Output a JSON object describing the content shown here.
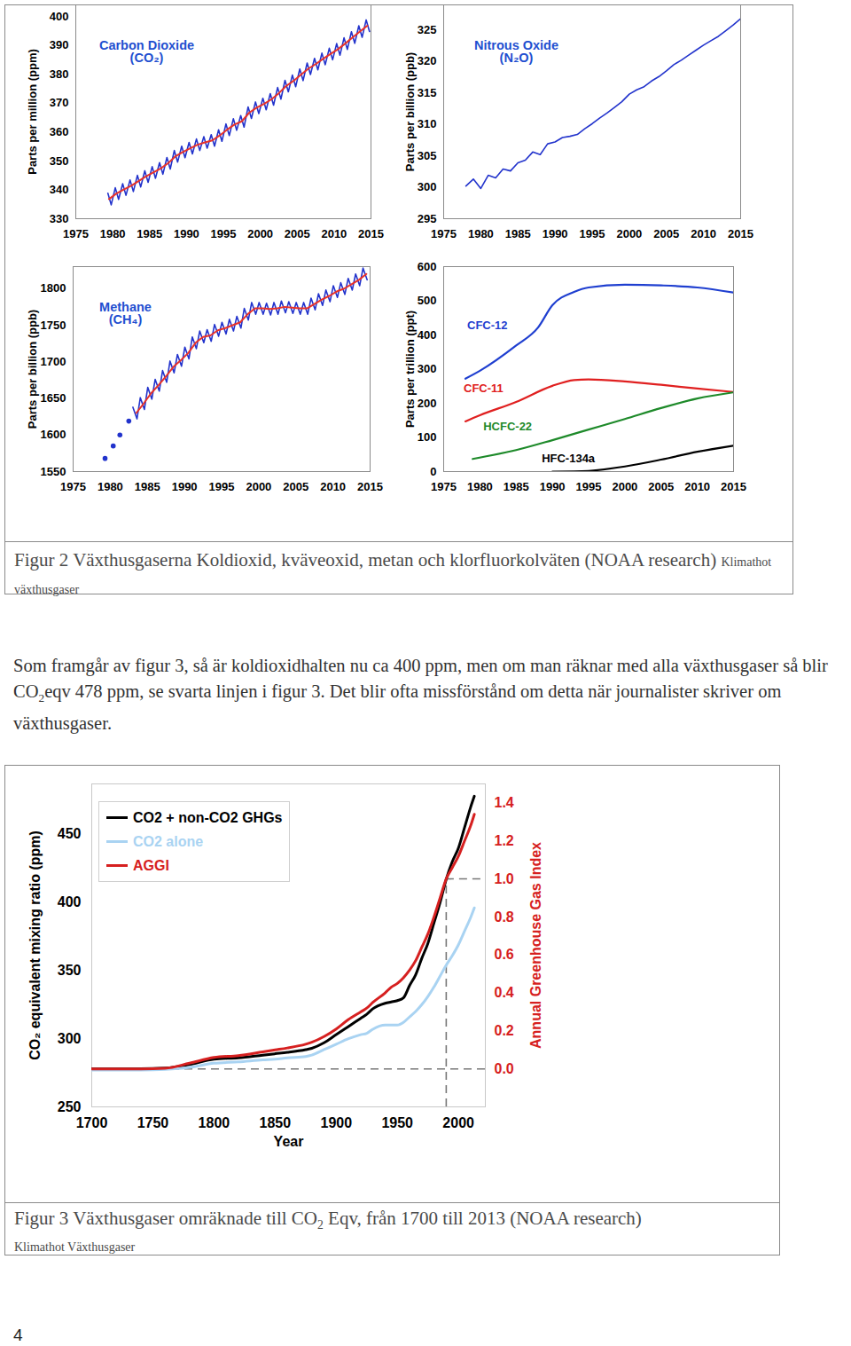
{
  "chart_data": [
    {
      "type": "line",
      "title": "Carbon Dioxide\n(CO₂)",
      "y_label": "Parts per million (ppm)",
      "xlim": [
        1975,
        2015
      ],
      "xticks": [
        1975,
        1980,
        1985,
        1990,
        1995,
        2000,
        2005,
        2010,
        2015
      ],
      "ylim": [
        330,
        404
      ],
      "yticks": [
        330,
        340,
        350,
        360,
        370,
        380,
        390,
        400
      ],
      "series": [
        {
          "color": "#2233cc",
          "x": [
            1979.35,
            1979.8,
            1980.35,
            1980.8,
            1981.35,
            1981.8,
            1982.35,
            1982.8,
            1983.35,
            1983.8,
            1984.35,
            1984.8,
            1985.35,
            1985.8,
            1986.35,
            1986.8,
            1987.35,
            1987.8,
            1988.35,
            1988.8,
            1989.35,
            1989.8,
            1990.35,
            1990.8,
            1991.35,
            1991.8,
            1992.35,
            1992.8,
            1993.35,
            1993.8,
            1994.35,
            1994.8,
            1995.35,
            1995.8,
            1996.35,
            1996.8,
            1997.35,
            1997.8,
            1998.35,
            1998.8,
            1999.35,
            1999.8,
            2000.35,
            2000.8,
            2001.35,
            2001.8,
            2002.35,
            2002.8,
            2003.35,
            2003.8,
            2004.35,
            2004.8,
            2005.35,
            2005.8,
            2006.35,
            2006.8,
            2007.35,
            2007.8,
            2008.35,
            2008.8,
            2009.35,
            2009.8,
            2010.35,
            2010.8,
            2011.35,
            2011.8,
            2012.35,
            2012.8,
            2013.35,
            2013.8,
            2014.35,
            2014.8
          ],
          "values": [
            338.8,
            334.8,
            340.7,
            336.7,
            342.1,
            338.1,
            343.4,
            339.4,
            345.0,
            341.0,
            346.6,
            342.6,
            348.0,
            344.0,
            349.4,
            345.4,
            351.2,
            347.2,
            353.6,
            349.6,
            355.1,
            351.1,
            356.4,
            352.4,
            357.6,
            353.6,
            358.4,
            354.4,
            359.1,
            355.1,
            360.8,
            356.8,
            362.8,
            358.8,
            364.6,
            360.6,
            365.7,
            361.7,
            368.7,
            364.7,
            370.4,
            366.4,
            371.7,
            367.7,
            373.3,
            369.3,
            375.4,
            371.4,
            377.9,
            373.9,
            379.7,
            375.7,
            381.8,
            377.8,
            383.9,
            379.9,
            385.5,
            381.5,
            387.3,
            383.3,
            389.0,
            385.0,
            390.6,
            386.6,
            392.6,
            388.6,
            394.7,
            390.7,
            396.8,
            392.8,
            398.8,
            394.8
          ]
        },
        {
          "color": "#e8322a",
          "x": [
            1979.5,
            1980.5,
            1981.5,
            1982.5,
            1983.5,
            1984.5,
            1985.5,
            1986.5,
            1987.5,
            1988.5,
            1989.5,
            1990.5,
            1991.5,
            1992.5,
            1993.5,
            1994.5,
            1995.5,
            1996.5,
            1997.5,
            1998.5,
            1999.5,
            2000.5,
            2001.5,
            2002.5,
            2003.5,
            2004.5,
            2005.5,
            2006.5,
            2007.5,
            2008.5,
            2009.5,
            2010.5,
            2011.5,
            2012.5,
            2013.5,
            2014.5
          ],
          "values": [
            336.8,
            338.7,
            340.1,
            341.4,
            343.0,
            344.6,
            346.0,
            347.4,
            349.2,
            351.6,
            353.1,
            354.4,
            355.6,
            356.4,
            357.1,
            358.8,
            360.8,
            362.6,
            363.7,
            366.7,
            368.4,
            369.7,
            371.3,
            373.4,
            375.9,
            377.7,
            379.8,
            381.9,
            383.5,
            385.3,
            387.0,
            388.6,
            390.6,
            392.7,
            394.8,
            396.8
          ]
        }
      ]
    },
    {
      "type": "line",
      "title": "Nitrous Oxide\n(N₂O)",
      "y_label": "Parts per billion (ppb)",
      "xlim": [
        1975,
        2015
      ],
      "xticks": [
        1975,
        1980,
        1985,
        1990,
        1995,
        2000,
        2005,
        2010,
        2015
      ],
      "ylim": [
        295,
        329
      ],
      "yticks": [
        295,
        300,
        305,
        310,
        315,
        320,
        325
      ],
      "series": [
        {
          "color": "#2233cc",
          "x": [
            1978,
            1979,
            1980,
            1981,
            1982,
            1983,
            1984,
            1985,
            1986,
            1987,
            1988,
            1989,
            1990,
            1991,
            1992,
            1993,
            1994,
            1995,
            1996,
            1997,
            1998,
            1999,
            2000,
            2001,
            2002,
            2003,
            2004,
            2005,
            2006,
            2007,
            2008,
            2009,
            2010,
            2011,
            2012,
            2013,
            2014,
            2015
          ],
          "values": [
            300.2,
            301.3,
            299.8,
            301.9,
            301.5,
            302.9,
            302.6,
            303.9,
            304.3,
            305.6,
            305.2,
            306.9,
            307.2,
            307.9,
            308.1,
            308.4,
            309.3,
            310.1,
            311.0,
            311.8,
            312.7,
            313.6,
            314.8,
            315.5,
            316.0,
            316.9,
            317.6,
            318.5,
            319.5,
            320.2,
            321.0,
            321.8,
            322.6,
            323.3,
            324.0,
            324.9,
            325.8,
            326.8
          ]
        }
      ]
    },
    {
      "type": "line",
      "title": "Methane\n(CH₄)",
      "y_label": "Parts per billion (ppb)",
      "xlim": [
        1975,
        2015
      ],
      "xticks": [
        1975,
        1980,
        1985,
        1990,
        1995,
        2000,
        2005,
        2010,
        2015
      ],
      "ylim": [
        1550,
        1830
      ],
      "yticks": [
        1550,
        1600,
        1650,
        1700,
        1750,
        1800
      ],
      "series": [
        {
          "type": "scatter",
          "marker": "dot",
          "color": "#2233cc",
          "x": [
            1979.3,
            1980.4,
            1981.3,
            1982.5
          ],
          "values": [
            1568,
            1585,
            1600,
            1619
          ]
        },
        {
          "color": "#2233cc",
          "x": [
            1983.05,
            1983.6,
            1984.05,
            1984.6,
            1985.05,
            1985.6,
            1986.05,
            1986.6,
            1987.05,
            1987.6,
            1988.05,
            1988.6,
            1989.05,
            1989.6,
            1990.05,
            1990.6,
            1991.05,
            1991.6,
            1992.05,
            1992.6,
            1993.05,
            1993.6,
            1994.05,
            1994.6,
            1995.05,
            1995.6,
            1996.05,
            1996.6,
            1997.05,
            1997.6,
            1998.05,
            1998.6,
            1999.05,
            1999.6,
            2000.05,
            2000.6,
            2001.05,
            2001.6,
            2002.05,
            2002.6,
            2003.05,
            2003.6,
            2004.05,
            2004.6,
            2005.05,
            2005.6,
            2006.05,
            2006.6,
            2007.05,
            2007.6,
            2008.05,
            2008.6,
            2009.05,
            2009.6,
            2010.05,
            2010.6,
            2011.05,
            2011.6,
            2012.05,
            2012.6,
            2013.05,
            2013.6,
            2014.05,
            2014.6
          ],
          "values": [
            1638,
            1622,
            1651,
            1635,
            1665,
            1649,
            1676,
            1660,
            1688,
            1672,
            1701,
            1685,
            1710,
            1694,
            1720,
            1704,
            1734,
            1718,
            1742,
            1726,
            1744,
            1728,
            1751,
            1735,
            1754,
            1738,
            1758,
            1742,
            1762,
            1746,
            1773,
            1757,
            1781,
            1765,
            1781,
            1765,
            1780,
            1764,
            1781,
            1765,
            1783,
            1767,
            1782,
            1766,
            1781,
            1765,
            1781,
            1765,
            1787,
            1771,
            1793,
            1777,
            1798,
            1782,
            1804,
            1788,
            1808,
            1792,
            1814,
            1798,
            1820,
            1804,
            1828,
            1812
          ]
        },
        {
          "color": "#e8322a",
          "x": [
            1983.5,
            1984.5,
            1985.5,
            1986.5,
            1987.5,
            1988.5,
            1989.5,
            1990.5,
            1991.5,
            1992.5,
            1993.5,
            1994.5,
            1995.5,
            1996.5,
            1997.5,
            1998.5,
            1999.5,
            2000.5,
            2001.5,
            2002.5,
            2003.5,
            2004.5,
            2005.5,
            2006.5,
            2007.5,
            2008.5,
            2009.5,
            2010.5,
            2011.5,
            2012.5,
            2013.5,
            2014.5
          ],
          "values": [
            1630,
            1643,
            1657,
            1668,
            1680,
            1693,
            1702,
            1712,
            1726,
            1734,
            1736,
            1743,
            1746,
            1750,
            1754,
            1765,
            1773,
            1773,
            1772,
            1773,
            1775,
            1774,
            1773,
            1773,
            1779,
            1785,
            1790,
            1796,
            1800,
            1806,
            1812,
            1820
          ]
        }
      ]
    },
    {
      "type": "line",
      "y_label": "Parts per trillion (ppt)",
      "xlim": [
        1975,
        2015
      ],
      "xticks": [
        1975,
        1980,
        1985,
        1990,
        1995,
        2000,
        2005,
        2010,
        2015
      ],
      "ylim": [
        0,
        600
      ],
      "yticks": [
        0,
        100,
        200,
        300,
        400,
        500,
        600
      ],
      "series": [
        {
          "name": "CFC-12",
          "color": "#1f3fd0",
          "x": [
            1978,
            1980,
            1985,
            1988,
            1990,
            1993,
            1995,
            2000,
            2005,
            2010,
            2015
          ],
          "values": [
            272,
            295,
            369,
            421,
            487,
            526,
            539,
            547,
            545,
            539,
            524
          ]
        },
        {
          "name": "CFC-11",
          "color": "#e02020",
          "x": [
            1978,
            1980,
            1985,
            1990,
            1993,
            1995,
            2000,
            2005,
            2010,
            2015
          ],
          "values": [
            147,
            165,
            204,
            251,
            268,
            270,
            264,
            254,
            243,
            233
          ]
        },
        {
          "name": "HCFC-22",
          "color": "#1e8a2a",
          "x": [
            1979,
            1985,
            1990,
            1995,
            2000,
            2005,
            2010,
            2015
          ],
          "values": [
            37,
            63,
            92,
            123,
            154,
            186,
            214,
            232
          ]
        },
        {
          "name": "HFC-134a",
          "color": "#000000",
          "x": [
            1990,
            1993,
            1995,
            2000,
            2005,
            2010,
            2015
          ],
          "values": [
            0,
            0.5,
            2,
            15,
            35,
            58,
            76
          ]
        }
      ]
    },
    {
      "type": "line",
      "x_label": "Year",
      "y_label": "CO₂ equivalent mixing ratio (ppm)",
      "y2_label": "Annual Greenhouse Gas Index",
      "xlim": [
        1700,
        2022
      ],
      "xticks": [
        1700,
        1750,
        1800,
        1850,
        1900,
        1950,
        2000
      ],
      "ylim": [
        250,
        487
      ],
      "yticks": [
        250,
        300,
        350,
        400,
        450
      ],
      "y2lim": [
        -0.2,
        1.5
      ],
      "y2ticks": [
        {
          "value": 0,
          "label": "0.0"
        },
        0.2,
        0.4,
        0.6,
        0.8,
        {
          "value": 1,
          "label": "1.0"
        },
        1.2,
        1.4
      ],
      "legend": "top-left",
      "reference_lines": {
        "x": 1990,
        "y2": [
          0,
          1
        ]
      },
      "series": [
        {
          "name": "CO2 + non-CO2 GHGs",
          "color": "#000000",
          "x": [
            1700,
            1720,
            1740,
            1760,
            1780,
            1800,
            1820,
            1840,
            1850,
            1860,
            1875,
            1880,
            1890,
            1900,
            1910,
            1920,
            1925,
            1930,
            1940,
            1945,
            1950,
            1955,
            1960,
            1965,
            1970,
            1975,
            1980,
            1985,
            1990,
            1995,
            2000,
            2005,
            2010,
            2013
          ],
          "values": [
            278,
            278,
            278,
            278.5,
            281,
            285,
            286,
            288,
            289,
            290,
            292,
            293,
            297,
            303,
            309,
            315,
            318,
            322,
            326,
            327,
            328,
            330,
            339,
            347,
            359,
            370,
            385,
            400,
            417,
            430,
            440,
            455,
            470,
            478
          ]
        },
        {
          "name": "CO2 alone",
          "color": "#a9d3f2",
          "x": [
            1700,
            1720,
            1740,
            1760,
            1780,
            1800,
            1820,
            1840,
            1850,
            1860,
            1875,
            1880,
            1890,
            1900,
            1910,
            1920,
            1925,
            1930,
            1940,
            1945,
            1950,
            1955,
            1960,
            1965,
            1970,
            1975,
            1980,
            1985,
            1990,
            1995,
            2000,
            2005,
            2010,
            2013
          ],
          "values": [
            277,
            277,
            277,
            277.5,
            279,
            282,
            283,
            284.5,
            285,
            286,
            287,
            288,
            292,
            296,
            300,
            303,
            304,
            307,
            310,
            310,
            310,
            312,
            316,
            320,
            325,
            331,
            338,
            346,
            354,
            361,
            369,
            379,
            389,
            396
          ]
        },
        {
          "name": "AGGI",
          "color": "#d62020",
          "axis": "y2",
          "x": [
            1700,
            1720,
            1740,
            1760,
            1780,
            1800,
            1820,
            1840,
            1850,
            1860,
            1875,
            1880,
            1890,
            1900,
            1910,
            1920,
            1925,
            1930,
            1940,
            1945,
            1950,
            1955,
            1960,
            1965,
            1970,
            1975,
            1980,
            1985,
            1990,
            1995,
            2000,
            2005,
            2010,
            2013
          ],
          "values": [
            0,
            0,
            0,
            0.003,
            0.03,
            0.06,
            0.07,
            0.09,
            0.1,
            0.11,
            0.13,
            0.14,
            0.17,
            0.21,
            0.26,
            0.3,
            0.32,
            0.35,
            0.4,
            0.43,
            0.45,
            0.48,
            0.52,
            0.57,
            0.64,
            0.71,
            0.8,
            0.9,
            1.0,
            1.06,
            1.12,
            1.2,
            1.28,
            1.34
          ]
        }
      ]
    }
  ],
  "captions": [
    {
      "parts": [
        {
          "text": "Figur 2 Växthusgaserna Koldioxid, kväveoxid, metan och klorfluorkolväten (NOAA research)"
        }
      ],
      "source": "Klimathot växthusgaser"
    },
    {
      "parts": [
        {
          "text": "Figur 3 Växthusgaser omräknade till CO"
        },
        {
          "text": "2",
          "sub": true
        },
        {
          "text": " Eqv, från 1700 till 2013 (NOAA research)"
        }
      ],
      "source": "Klimathot Växthusgaser"
    }
  ],
  "paragraph": [
    {
      "text": "Som framgår av figur 3, så är koldioxidhalten nu ca 400 ppm, men om man räknar med alla växthusgaser så blir CO"
    },
    {
      "text": "2",
      "sub": true
    },
    {
      "text": "eqv 478 ppm, se svarta linjen i figur 3. Det blir ofta missförstånd om detta när journalister skriver om växthusgaser."
    }
  ],
  "page_number": "4"
}
